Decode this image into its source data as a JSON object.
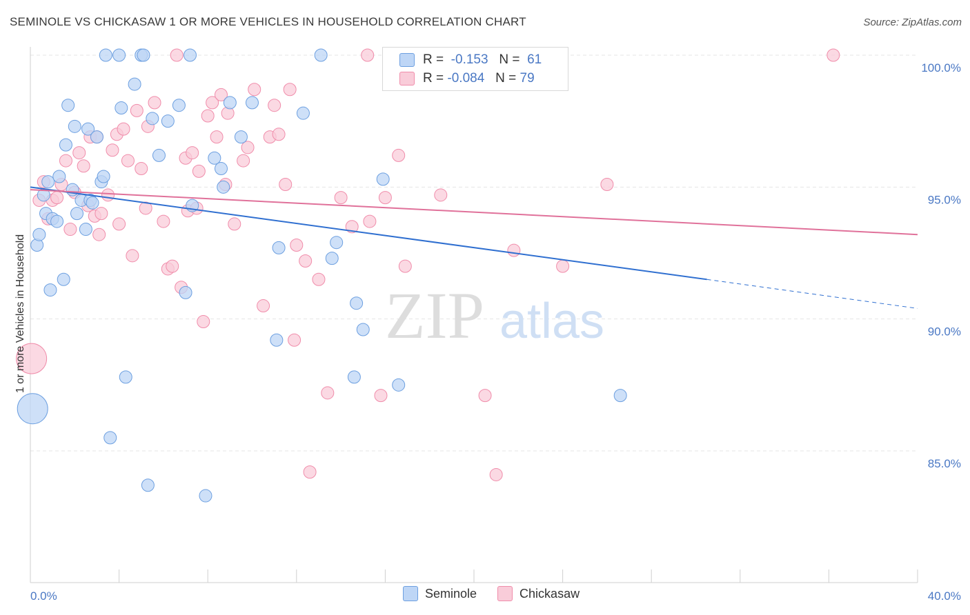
{
  "header": {
    "title": "SEMINOLE VS CHICKASAW 1 OR MORE VEHICLES IN HOUSEHOLD CORRELATION CHART",
    "source": "Source: ZipAtlas.com"
  },
  "legend": {
    "rows": [
      {
        "r_label": "R =",
        "r_value": "-0.153",
        "n_label": "N =",
        "n_value": "61"
      },
      {
        "r_label": "R =",
        "r_value": "-0.084",
        "n_label": "N =",
        "n_value": "79"
      }
    ]
  },
  "watermark": {
    "zip": "ZIP",
    "atlas": "atlas"
  },
  "chart_data": {
    "type": "scatter",
    "title": "SEMINOLE VS CHICKASAW 1 OR MORE VEHICLES IN HOUSEHOLD CORRELATION CHART",
    "ylabel": "1 or more Vehicles in Household",
    "xlabel": "",
    "xlim": [
      0,
      40
    ],
    "ylim": [
      80.3,
      101
    ],
    "x_tick_labels": [
      {
        "value": 0,
        "label": "0.0%"
      },
      {
        "value": 40,
        "label": "40.0%"
      }
    ],
    "y_tick_labels": [
      {
        "value": 100,
        "label": "100.0%"
      },
      {
        "value": 95,
        "label": "95.0%"
      },
      {
        "value": 90,
        "label": "90.0%"
      },
      {
        "value": 85,
        "label": "85.0%"
      }
    ],
    "grid": true,
    "legend_placement": "top-center",
    "colors": {
      "seminole": "#6c9fe0",
      "chickasaw": "#f08caa",
      "seminole_fill": "#bed6f6",
      "chickasaw_fill": "#f9ccd9",
      "seminole_line": "#2f6fd0",
      "chickasaw_line": "#e0719a"
    },
    "series": [
      {
        "name": "Seminole",
        "trend": {
          "x0": 0,
          "y0": 95.0,
          "x1": 30.5,
          "y1": 91.5,
          "dash_to_x": 40,
          "dash_to_y": 90.4
        },
        "points": [
          [
            0.1,
            86.6,
            "big"
          ],
          [
            0.3,
            92.8
          ],
          [
            0.4,
            93.2
          ],
          [
            0.6,
            94.7
          ],
          [
            0.7,
            94.0
          ],
          [
            0.8,
            95.2
          ],
          [
            0.9,
            91.1
          ],
          [
            1.0,
            93.8
          ],
          [
            1.2,
            93.7
          ],
          [
            1.3,
            95.4
          ],
          [
            1.5,
            91.5
          ],
          [
            1.6,
            96.6
          ],
          [
            1.7,
            98.1
          ],
          [
            1.9,
            94.9
          ],
          [
            2.0,
            97.3
          ],
          [
            2.1,
            94.0
          ],
          [
            2.3,
            94.5
          ],
          [
            2.5,
            93.4
          ],
          [
            2.6,
            97.2
          ],
          [
            2.7,
            94.5
          ],
          [
            2.8,
            94.4
          ],
          [
            3.0,
            96.9
          ],
          [
            3.2,
            95.2
          ],
          [
            3.3,
            95.4
          ],
          [
            3.4,
            100.0
          ],
          [
            3.6,
            85.5
          ],
          [
            4.0,
            100.0
          ],
          [
            4.1,
            98.0
          ],
          [
            4.3,
            87.8
          ],
          [
            4.7,
            98.9
          ],
          [
            5.0,
            100.0
          ],
          [
            5.1,
            100.0
          ],
          [
            5.3,
            83.7
          ],
          [
            5.5,
            97.6
          ],
          [
            5.8,
            96.2
          ],
          [
            6.2,
            97.5
          ],
          [
            6.7,
            98.1
          ],
          [
            7.0,
            91.0
          ],
          [
            7.2,
            100.0
          ],
          [
            7.3,
            94.3
          ],
          [
            7.9,
            83.3
          ],
          [
            8.3,
            96.1
          ],
          [
            8.6,
            95.7
          ],
          [
            8.7,
            95.0
          ],
          [
            9.0,
            98.2
          ],
          [
            9.5,
            96.9
          ],
          [
            10.0,
            98.2
          ],
          [
            11.2,
            92.7
          ],
          [
            11.1,
            89.2
          ],
          [
            12.3,
            97.8
          ],
          [
            13.1,
            100.0
          ],
          [
            13.6,
            92.3
          ],
          [
            13.8,
            92.9
          ],
          [
            14.6,
            87.8
          ],
          [
            14.7,
            90.6
          ],
          [
            15.0,
            89.6
          ],
          [
            15.9,
            95.3
          ],
          [
            16.6,
            87.5
          ],
          [
            19.0,
            100.0
          ],
          [
            26.6,
            87.1
          ],
          [
            23.0,
            100.0
          ]
        ]
      },
      {
        "name": "Chickasaw",
        "trend": {
          "x0": 0,
          "y0": 94.9,
          "x1": 40,
          "y1": 93.2
        },
        "points": [
          [
            0.05,
            88.5,
            "big"
          ],
          [
            0.4,
            94.5
          ],
          [
            0.6,
            95.2
          ],
          [
            0.8,
            93.8
          ],
          [
            1.0,
            94.5
          ],
          [
            1.2,
            94.6
          ],
          [
            1.4,
            95.1
          ],
          [
            1.6,
            96.0
          ],
          [
            1.8,
            93.4
          ],
          [
            2.0,
            94.8
          ],
          [
            2.2,
            96.3
          ],
          [
            2.4,
            95.8
          ],
          [
            2.6,
            94.3
          ],
          [
            2.7,
            96.9
          ],
          [
            2.9,
            93.9
          ],
          [
            3.1,
            93.2
          ],
          [
            3.2,
            94.0
          ],
          [
            3.5,
            94.7
          ],
          [
            3.7,
            96.4
          ],
          [
            3.9,
            97.0
          ],
          [
            4.0,
            93.6
          ],
          [
            4.2,
            97.2
          ],
          [
            4.4,
            96.0
          ],
          [
            4.6,
            92.4
          ],
          [
            4.8,
            97.9
          ],
          [
            5.0,
            95.7
          ],
          [
            5.2,
            94.2
          ],
          [
            5.3,
            97.3
          ],
          [
            5.6,
            98.2
          ],
          [
            6.0,
            93.7
          ],
          [
            6.2,
            91.9
          ],
          [
            6.4,
            92.0
          ],
          [
            6.6,
            100.0
          ],
          [
            6.8,
            91.2
          ],
          [
            7.0,
            96.1
          ],
          [
            7.1,
            94.1
          ],
          [
            7.3,
            96.3
          ],
          [
            7.5,
            94.2
          ],
          [
            7.6,
            95.6
          ],
          [
            7.8,
            89.9
          ],
          [
            8.0,
            97.7
          ],
          [
            8.2,
            98.2
          ],
          [
            8.4,
            96.9
          ],
          [
            8.6,
            98.5
          ],
          [
            8.8,
            95.1
          ],
          [
            8.9,
            97.8
          ],
          [
            9.2,
            93.6
          ],
          [
            9.6,
            96.0
          ],
          [
            9.8,
            96.5
          ],
          [
            10.1,
            98.7
          ],
          [
            10.5,
            90.5
          ],
          [
            10.8,
            96.9
          ],
          [
            11.0,
            98.1
          ],
          [
            11.2,
            97.0
          ],
          [
            11.5,
            95.1
          ],
          [
            11.7,
            98.7
          ],
          [
            11.9,
            89.2
          ],
          [
            12.0,
            92.8
          ],
          [
            12.4,
            92.2
          ],
          [
            13.0,
            91.5
          ],
          [
            13.4,
            87.2
          ],
          [
            14.0,
            94.6
          ],
          [
            14.5,
            93.5
          ],
          [
            15.2,
            100.0
          ],
          [
            15.3,
            93.7
          ],
          [
            15.8,
            87.1
          ],
          [
            16.0,
            94.6
          ],
          [
            16.6,
            96.2
          ],
          [
            16.9,
            92.0
          ],
          [
            18.5,
            94.7
          ],
          [
            20.5,
            87.1
          ],
          [
            21.0,
            84.1
          ],
          [
            21.5,
            100.0
          ],
          [
            21.8,
            92.6
          ],
          [
            24.0,
            92.0
          ],
          [
            26.0,
            95.1
          ],
          [
            36.2,
            100.0
          ],
          [
            12.6,
            84.2
          ],
          [
            3.0,
            96.9
          ]
        ]
      }
    ]
  },
  "bottom_legend": {
    "items": [
      "Seminole",
      "Chickasaw"
    ]
  }
}
